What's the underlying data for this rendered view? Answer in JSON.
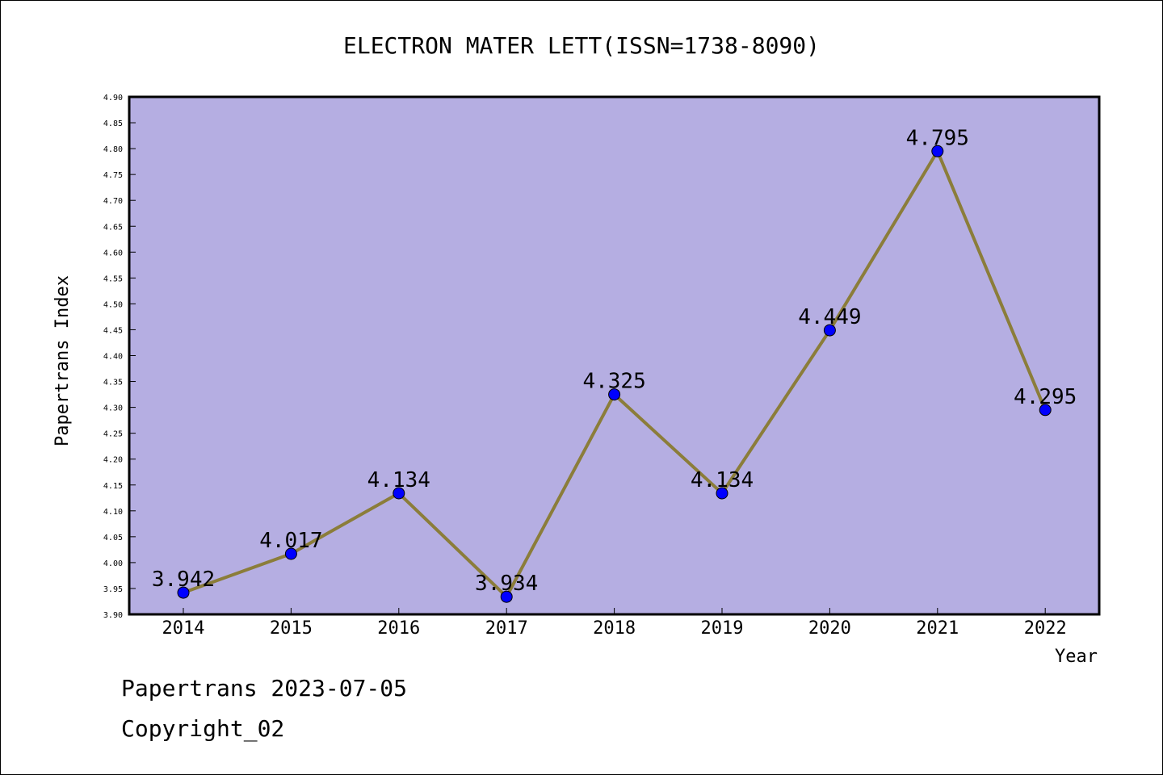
{
  "colors": {
    "plot_background": "#b5aee2",
    "line": "#8b7d3a",
    "marker": "#0000ff",
    "axis": "#000000"
  },
  "chart_data": {
    "type": "line",
    "title": "ELECTRON MATER LETT(ISSN=1738-8090)",
    "xlabel": "Year",
    "ylabel": "Papertrans Index",
    "categories": [
      "2014",
      "2015",
      "2016",
      "2017",
      "2018",
      "2019",
      "2020",
      "2021",
      "2022"
    ],
    "values": [
      3.942,
      4.017,
      4.134,
      3.934,
      4.325,
      4.134,
      4.449,
      4.795,
      4.295
    ],
    "data_labels": [
      "3.942",
      "4.017",
      "4.134",
      "3.934",
      "4.325",
      "4.134",
      "4.449",
      "4.795",
      "4.295"
    ],
    "ylim": [
      3.9,
      4.9
    ],
    "yticks": [
      "3.90",
      "3.95",
      "4.00",
      "4.05",
      "4.10",
      "4.15",
      "4.20",
      "4.25",
      "4.30",
      "4.35",
      "4.40",
      "4.45",
      "4.50",
      "4.55",
      "4.60",
      "4.65",
      "4.70",
      "4.75",
      "4.80",
      "4.85",
      "4.90"
    ],
    "grid": false,
    "legend": "none"
  },
  "footer": {
    "date_text": "Papertrans 2023-07-05",
    "copyright_text": "Copyright_02"
  }
}
